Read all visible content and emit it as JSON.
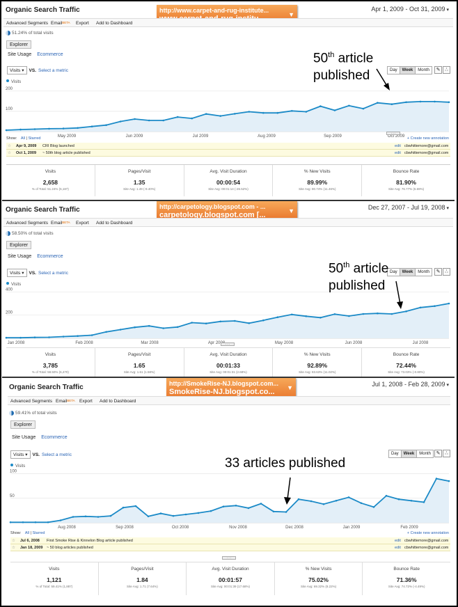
{
  "panels": [
    {
      "title": "Organic Search Traffic",
      "url_line1": "http://www.carpet-and-rug-institute...",
      "url_line2": "www.carpet-and-rug-institu...",
      "date_range": "Apr 1, 2009 - Oct 31, 2009",
      "toolbar": {
        "segments": "Advanced Segments",
        "email": "Email",
        "beta": "BETA",
        "export": "Export",
        "dashboard": "Add to Dashboard"
      },
      "pct_total": "51.24% of total visits",
      "explorer": "Explorer",
      "tab_site_usage": "Site Usage",
      "tab_ecommerce": "Ecommerce",
      "metric_select": "Visits",
      "vs": "VS.",
      "select_metric": "Select a metric",
      "dwm": [
        "Day",
        "Week",
        "Month"
      ],
      "callout_num": "50",
      "callout_sup": "th",
      "callout_rest": " article",
      "callout_line2": "published",
      "anno_show": "Show:",
      "anno_all": "All",
      "anno_starred": "Starred",
      "anno_create": "+ Create new annotation",
      "annotations": [
        {
          "date": "Apr 9, 2009",
          "text": "CRI Blog launched",
          "edit": "edit",
          "email": "cbwhittemore@gmail.com"
        },
        {
          "date": "Oct 1, 2009",
          "text": "~ 50th blog article published",
          "edit": "edit",
          "email": "cbwhittemore@gmail.com"
        }
      ],
      "stats": [
        {
          "label": "Visits",
          "value": "2,658",
          "sub": "% of Total: 51.24% (5,187)"
        },
        {
          "label": "Pages/Visit",
          "value": "1.35",
          "sub": "Site Avg: 1.49 (-9.40%)"
        },
        {
          "label": "Avg. Visit Duration",
          "value": "00:00:54",
          "sub": "Site Avg: 00:01:14 (-26.52%)"
        },
        {
          "label": "% New Visits",
          "value": "89.99%",
          "sub": "Site Avg: 80.74% (11.46%)"
        },
        {
          "label": "Bounce Rate",
          "value": "81.90%",
          "sub": "Site Avg: 76.77% (6.69%)"
        }
      ]
    },
    {
      "title": "Organic Search Traffic",
      "url_line1": "http://carpetology.blogspot.com - ...",
      "url_line2": "carpetology.blogspot.com [...",
      "date_range": "Dec 27, 2007 - Jul 19, 2008",
      "toolbar": {
        "segments": "Advanced Segments",
        "email": "Email",
        "beta": "BETA",
        "export": "Export",
        "dashboard": "Add to Dashboard"
      },
      "pct_total": "58.50% of total visits",
      "explorer": "Explorer",
      "tab_site_usage": "Site Usage",
      "tab_ecommerce": "Ecommerce",
      "metric_select": "Visits",
      "vs": "VS.",
      "select_metric": "Select a metric",
      "dwm": [
        "Day",
        "Week",
        "Month"
      ],
      "callout_num": "50",
      "callout_sup": "th",
      "callout_rest": " article",
      "callout_line2": "published",
      "stats": [
        {
          "label": "Visits",
          "value": "3,785",
          "sub": "% of Total: 58.50% (6,470)"
        },
        {
          "label": "Pages/Visit",
          "value": "1.65",
          "sub": "Site Avg: 1.61 (1.58%)"
        },
        {
          "label": "Avg. Visit Duration",
          "value": "00:01:33",
          "sub": "Site Avg: 00:01:31 (2.68%)"
        },
        {
          "label": "% New Visits",
          "value": "92.89%",
          "sub": "Site Avg: 83.63% (11.02%)"
        },
        {
          "label": "Bounce Rate",
          "value": "72.44%",
          "sub": "Site Avg: 73.03% (-0.80%)"
        }
      ]
    },
    {
      "title": "Organic Search Traffic",
      "url_line1": "http://SmokeRise-NJ.blogspot.com...",
      "url_line2": "SmokeRise-NJ.blogspot.co...",
      "date_range": "Jul 1, 2008 - Feb 28, 2009",
      "toolbar": {
        "segments": "Advanced Segments",
        "email": "Email",
        "beta": "BETA",
        "export": "Export",
        "dashboard": "Add to Dashboard"
      },
      "pct_total": "59.41% of total visits",
      "explorer": "Explorer",
      "tab_site_usage": "Site Usage",
      "tab_ecommerce": "Ecommerce",
      "metric_select": "Visits",
      "vs": "VS.",
      "select_metric": "Select a metric",
      "dwm": [
        "Day",
        "Week",
        "Month"
      ],
      "callout_line1": "33 articles published",
      "anno_show": "Show:",
      "anno_all": "All",
      "anno_starred": "Starred",
      "anno_create": "+ Create new annotation",
      "annotations": [
        {
          "date": "Jul 6, 2008",
          "text": "First Smoke Rise & Kinnelon Blog article published",
          "edit": "edit",
          "email": "cbwhittemore@gmail.com"
        },
        {
          "date": "Jan 18, 2009",
          "text": "~ 50 blog articles published",
          "edit": "edit",
          "email": "cbwhittemore@gmail.com"
        }
      ],
      "stats": [
        {
          "label": "Visits",
          "value": "1,121",
          "sub": "% of Total: 59.41% (1,887)"
        },
        {
          "label": "Pages/Visit",
          "value": "1.84",
          "sub": "Site Avg: 1.71 (7.64%)"
        },
        {
          "label": "Avg. Visit Duration",
          "value": "00:01:57",
          "sub": "Site Avg: 00:01:39 (17.68%)"
        },
        {
          "label": "% New Visits",
          "value": "75.02%",
          "sub": "Site Avg: 69.32% (8.22%)"
        },
        {
          "label": "Bounce Rate",
          "value": "71.36%",
          "sub": "Site Avg: 74.72% (-4.49%)"
        }
      ]
    }
  ],
  "chart_data": [
    {
      "type": "area",
      "series": [
        {
          "name": "Visits",
          "values": [
            7,
            10,
            12,
            14,
            15,
            18,
            25,
            32,
            50,
            62,
            55,
            55,
            72,
            65,
            87,
            77,
            88,
            98,
            92,
            92,
            102,
            98,
            125,
            105,
            128,
            113,
            142,
            135,
            145,
            148,
            148,
            145
          ]
        }
      ],
      "yticks": [
        100,
        200
      ],
      "ylim": [
        0,
        220
      ],
      "x_tick_labels": [
        "May 2009",
        "Jun 2009",
        "Jul 2009",
        "Aug 2009",
        "Sep 2009",
        "Oct 2009"
      ],
      "legend": "Visits",
      "color": "#1b8ac7"
    },
    {
      "type": "area",
      "series": [
        {
          "name": "Visits",
          "values": [
            5,
            5,
            8,
            9,
            15,
            20,
            27,
            55,
            75,
            95,
            107,
            87,
            97,
            135,
            128,
            145,
            150,
            130,
            155,
            182,
            205,
            190,
            178,
            208,
            192,
            210,
            215,
            210,
            232,
            265,
            278,
            300
          ]
        }
      ],
      "yticks": [
        200,
        400
      ],
      "ylim": [
        0,
        420
      ],
      "x_tick_labels": [
        "Jan 2008",
        "Feb 2008",
        "Mar 2008",
        "Apr 2008",
        "May 2008",
        "Jun 2008",
        "Jul 2008"
      ],
      "legend": "Visits",
      "color": "#1b8ac7"
    },
    {
      "type": "area",
      "series": [
        {
          "name": "Visits",
          "values": [
            1,
            1,
            1,
            1,
            5,
            12,
            13,
            12,
            14,
            31,
            34,
            13,
            19,
            14,
            17,
            20,
            24,
            33,
            35,
            30,
            39,
            23,
            22,
            48,
            44,
            38,
            45,
            52,
            40,
            32,
            55,
            48,
            45,
            42,
            90,
            85
          ]
        }
      ],
      "yticks": [
        50,
        100
      ],
      "ylim": [
        0,
        105
      ],
      "x_tick_labels": [
        "Aug 2008",
        "Sep 2008",
        "Oct 2008",
        "Nov 2008",
        "Dec 2008",
        "Jan 2009",
        "Feb 2009"
      ],
      "legend": "Visits",
      "color": "#1b8ac7"
    }
  ]
}
